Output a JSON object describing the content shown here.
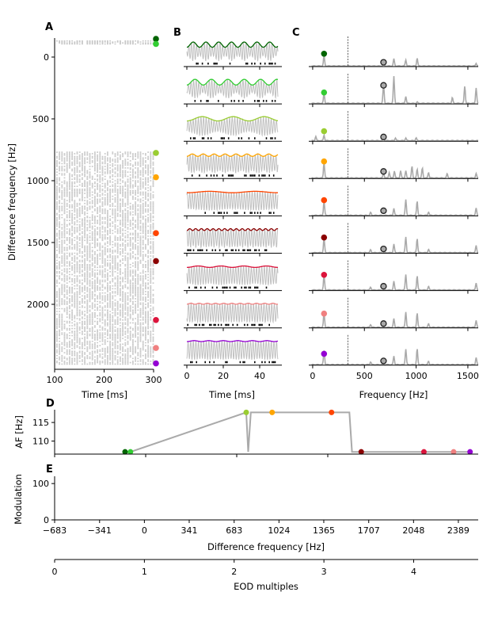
{
  "colors": {
    "grey_line": "#aaaaaa",
    "grey_trace": "#c0c0c0",
    "raster": "#c8c8c8",
    "dashed": "#333333"
  },
  "conditions": [
    {
      "name": "c1",
      "color": "#006400",
      "df": -147,
      "af": 107.1
    },
    {
      "name": "c2",
      "color": "#32cd32",
      "df": -106,
      "af": 107.1
    },
    {
      "name": "c3",
      "color": "#9acd32",
      "df": 775,
      "af": 117.7
    },
    {
      "name": "c4",
      "color": "#ffa500",
      "df": 972,
      "af": 117.7
    },
    {
      "name": "c5",
      "color": "#ff4500",
      "df": 1424,
      "af": 117.7
    },
    {
      "name": "c6",
      "color": "#8b0000",
      "df": 1650,
      "af": 107.1
    },
    {
      "name": "c7",
      "color": "#dc143c",
      "df": 2127,
      "af": 107.1
    },
    {
      "name": "c8",
      "color": "#f08080",
      "df": 2353,
      "af": 107.1
    },
    {
      "name": "c9",
      "color": "#9400d3",
      "df": 2478,
      "af": 107.1
    }
  ],
  "chart_data": [
    {
      "panel": "A",
      "type": "scatter",
      "title": "A",
      "xlabel": "Time [ms]",
      "ylabel": "Difference frequency [Hz]",
      "xlim": [
        100,
        300
      ],
      "ylim": [
        2550,
        -150
      ],
      "xticks": [
        "100",
        "200",
        "300"
      ],
      "yticks": [
        "0",
        "500",
        "1000",
        "1500",
        "2000"
      ],
      "raster_rows_df_ranges": [
        [
          -130,
          -100
        ],
        [
          770,
          2490
        ]
      ],
      "markers_df": [
        -147,
        -106,
        775,
        972,
        1424,
        1650,
        2127,
        2353,
        2478
      ]
    },
    {
      "panel": "B",
      "type": "line",
      "title": "B",
      "xlabel": "Time [ms]",
      "xlim": [
        0,
        50
      ],
      "xticks": [
        "0",
        "20",
        "40"
      ],
      "n_rows": 9,
      "envelope_periods_ms": [
        7.0,
        9.0,
        17.0,
        6.0,
        25.0,
        3.2,
        12.5,
        4.5,
        8.0
      ],
      "envelope_depth": [
        0.55,
        0.6,
        0.45,
        0.25,
        0.15,
        0.2,
        0.15,
        0.1,
        0.1
      ]
    },
    {
      "panel": "C",
      "type": "line",
      "title": "C",
      "xlabel": "Frequency [Hz]",
      "xlim": [
        -30,
        1600
      ],
      "xticks": [
        "0",
        "500",
        "1000",
        "1500"
      ],
      "dashed_line_x": 340,
      "colored_peak_x": 110,
      "circle_peak_x": 685,
      "spectra": [
        {
          "peaks": [
            [
              110,
              0.35
            ],
            [
              685,
              0.12
            ],
            [
              785,
              0.25
            ],
            [
              900,
              0.22
            ],
            [
              1010,
              0.28
            ],
            [
              1580,
              0.1
            ]
          ],
          "circle_y": 0.15,
          "dot_y": 0.45
        },
        {
          "peaks": [
            [
              110,
              0.35
            ],
            [
              685,
              0.65
            ],
            [
              785,
              0.95
            ],
            [
              900,
              0.25
            ],
            [
              1010,
              0.05
            ],
            [
              1350,
              0.2
            ],
            [
              1470,
              0.6
            ],
            [
              1580,
              0.55
            ]
          ],
          "circle_y": 0.65,
          "dot_y": 0.4
        },
        {
          "peaks": [
            [
              30,
              0.15
            ],
            [
              110,
              0.2
            ],
            [
              685,
              0.1
            ],
            [
              800,
              0.1
            ],
            [
              900,
              0.1
            ],
            [
              1000,
              0.1
            ]
          ],
          "circle_y": 0.15,
          "dot_y": 0.35
        },
        {
          "peaks": [
            [
              110,
              0.55
            ],
            [
              685,
              0.2
            ],
            [
              740,
              0.2
            ],
            [
              790,
              0.25
            ],
            [
              850,
              0.25
            ],
            [
              900,
              0.25
            ],
            [
              960,
              0.4
            ],
            [
              1010,
              0.3
            ],
            [
              1060,
              0.35
            ],
            [
              1120,
              0.2
            ],
            [
              1300,
              0.15
            ],
            [
              1580,
              0.15
            ]
          ],
          "circle_y": 0.25,
          "dot_y": 0.6
        },
        {
          "peaks": [
            [
              110,
              0.5
            ],
            [
              560,
              0.1
            ],
            [
              785,
              0.25
            ],
            [
              900,
              0.55
            ],
            [
              1010,
              0.5
            ],
            [
              1120,
              0.12
            ],
            [
              1580,
              0.25
            ]
          ],
          "circle_y": 0.18,
          "dot_y": 0.55
        },
        {
          "peaks": [
            [
              110,
              0.5
            ],
            [
              560,
              0.1
            ],
            [
              785,
              0.3
            ],
            [
              900,
              0.55
            ],
            [
              1010,
              0.5
            ],
            [
              1120,
              0.12
            ],
            [
              1580,
              0.25
            ]
          ],
          "circle_y": 0.15,
          "dot_y": 0.55
        },
        {
          "peaks": [
            [
              110,
              0.5
            ],
            [
              560,
              0.1
            ],
            [
              785,
              0.3
            ],
            [
              900,
              0.55
            ],
            [
              1010,
              0.5
            ],
            [
              1120,
              0.12
            ],
            [
              1580,
              0.25
            ]
          ],
          "circle_y": 0.15,
          "dot_y": 0.55
        },
        {
          "peaks": [
            [
              110,
              0.5
            ],
            [
              560,
              0.1
            ],
            [
              785,
              0.3
            ],
            [
              900,
              0.55
            ],
            [
              1010,
              0.5
            ],
            [
              1120,
              0.12
            ],
            [
              1580,
              0.25
            ]
          ],
          "circle_y": 0.15,
          "dot_y": 0.5
        },
        {
          "peaks": [
            [
              110,
              0.5
            ],
            [
              560,
              0.1
            ],
            [
              785,
              0.3
            ],
            [
              900,
              0.55
            ],
            [
              1010,
              0.55
            ],
            [
              1120,
              0.12
            ],
            [
              1580,
              0.25
            ]
          ],
          "circle_y": 0.15,
          "dot_y": 0.4
        }
      ]
    },
    {
      "panel": "D",
      "type": "line",
      "title": "D",
      "ylabel": "AF [Hz]",
      "xlim": [
        -683,
        2540
      ],
      "ylim": [
        106.5,
        118
      ],
      "yticks": [
        "110",
        "115"
      ],
      "line_x": [
        -147,
        -106,
        775,
        790,
        810,
        972,
        1424,
        1560,
        1580,
        1650,
        2127,
        2353,
        2478
      ],
      "line_y": [
        107.1,
        107.1,
        117.7,
        107.1,
        117.7,
        117.7,
        117.7,
        117.7,
        107.1,
        107.1,
        107.1,
        107.1,
        107.1
      ]
    },
    {
      "panel": "E",
      "type": "line",
      "title": "E",
      "xlabel": "Difference frequency [Hz]",
      "ylabel": "Modulation",
      "xlim": [
        -683,
        2540
      ],
      "ylim": [
        0,
        120
      ],
      "xticks": [
        "−683",
        "−341",
        "0",
        "341",
        "683",
        "1024",
        "1365",
        "1707",
        "2048",
        "2389"
      ],
      "yticks": [
        "0",
        "100"
      ],
      "secondary_xlabel": "EOD multiples",
      "secondary_xticks": [
        "0",
        "1",
        "2",
        "3",
        "4"
      ]
    }
  ]
}
